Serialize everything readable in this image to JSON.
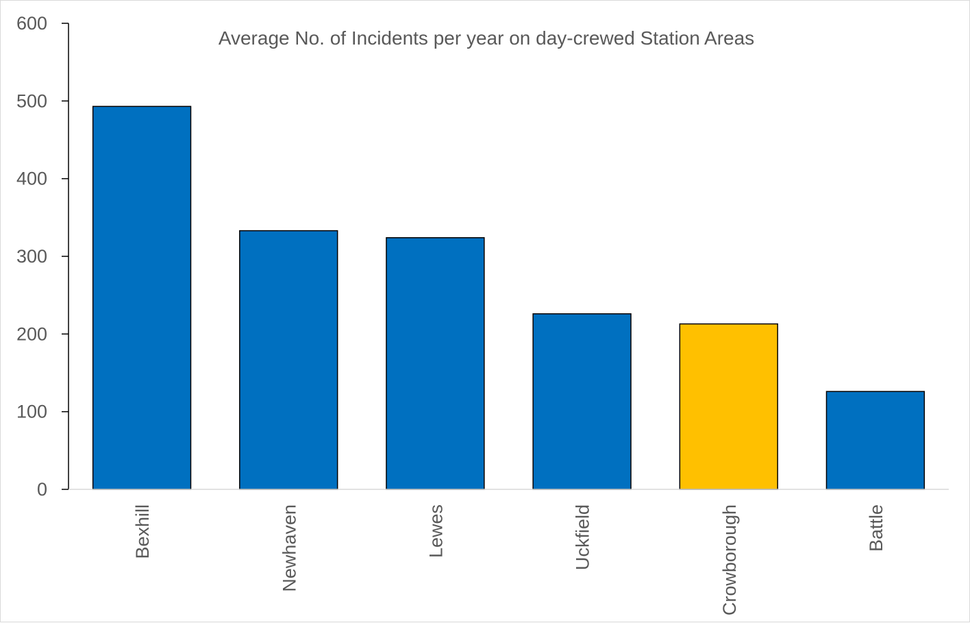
{
  "chart_data": {
    "type": "bar",
    "title": "Average No. of Incidents per year on day-crewed Station Areas",
    "xlabel": "",
    "ylabel": "",
    "categories": [
      "Bexhill",
      "Newhaven",
      "Lewes",
      "Uckfield",
      "Crowborough",
      "Battle"
    ],
    "values": [
      493,
      333,
      324,
      226,
      213,
      126
    ],
    "bar_colors": [
      "#0070C0",
      "#0070C0",
      "#0070C0",
      "#0070C0",
      "#FFC000",
      "#0070C0"
    ],
    "ylim": [
      0,
      600
    ],
    "yticks": [
      0,
      100,
      200,
      300,
      400,
      500,
      600
    ],
    "grid": false,
    "legend": "none"
  }
}
